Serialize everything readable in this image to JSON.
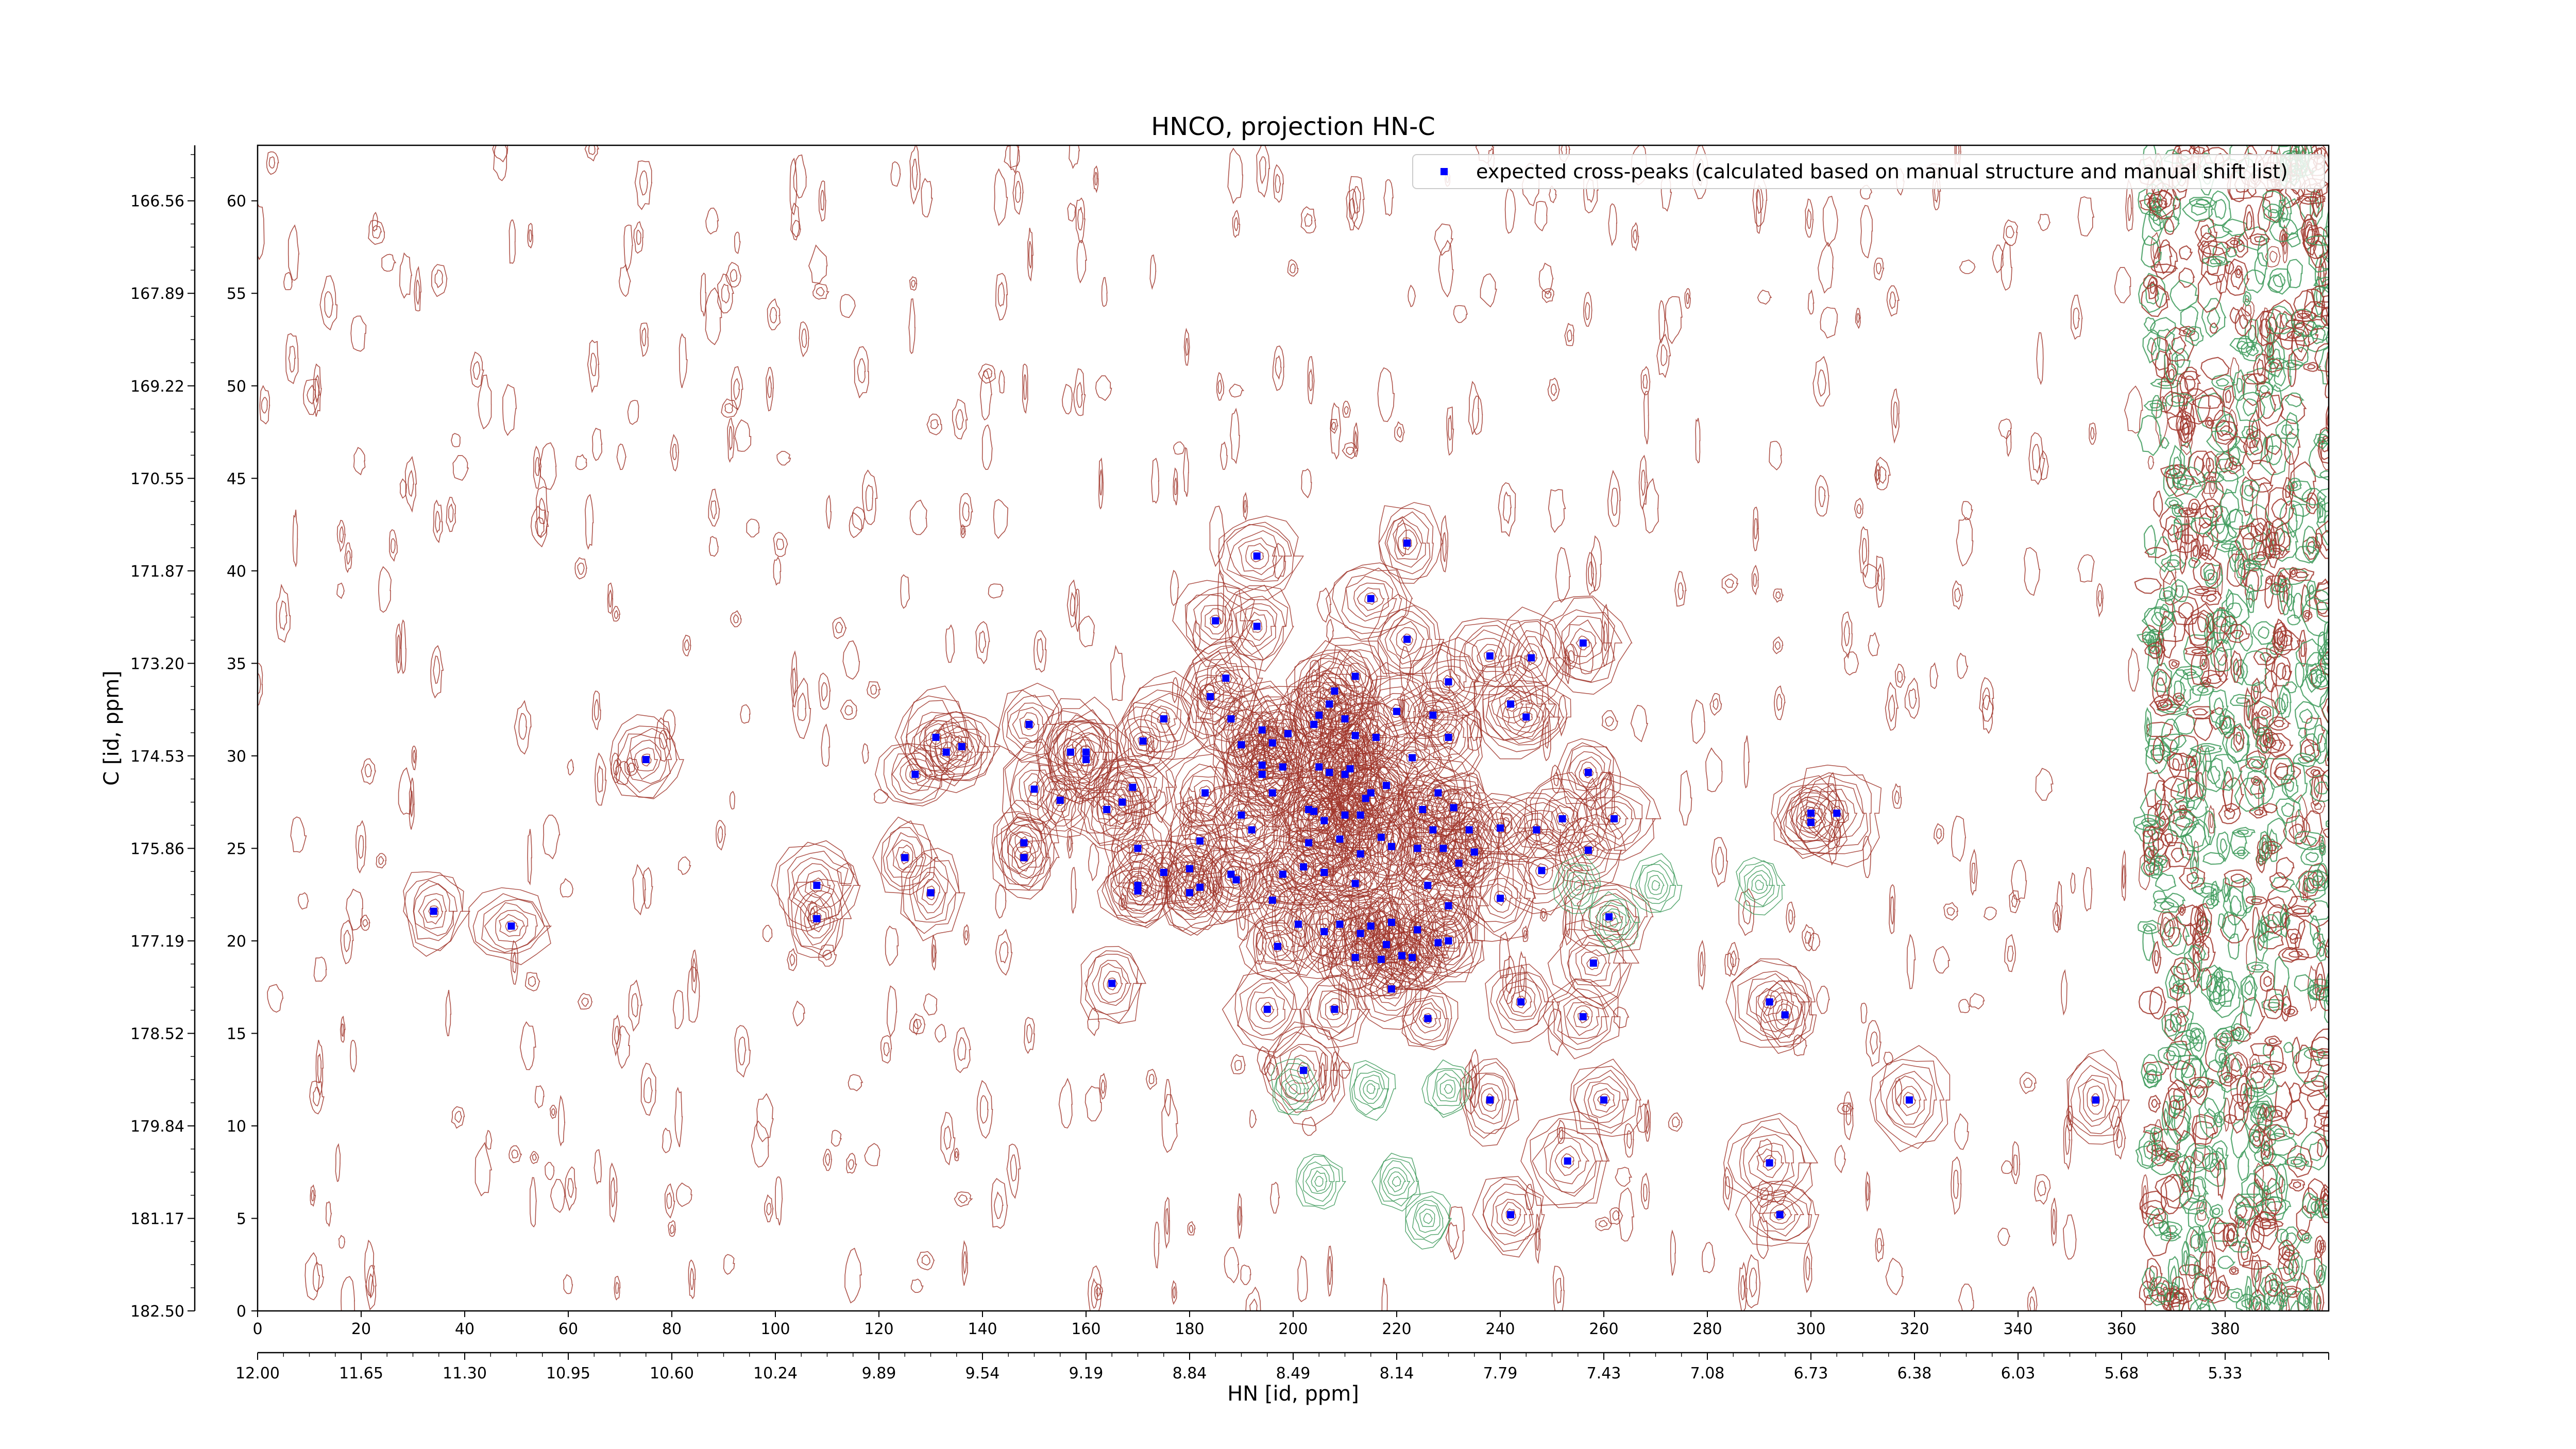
{
  "chart_data": {
    "type": "scatter",
    "title": "HNCO, projection HN-C",
    "xlabel": "HN [id, ppm]",
    "ylabel": "C [id, ppm]",
    "xlim": [
      0,
      400
    ],
    "ylim": [
      0,
      63
    ],
    "x_ticks": [
      0,
      20,
      40,
      60,
      80,
      100,
      120,
      140,
      160,
      180,
      200,
      220,
      240,
      260,
      280,
      300,
      320,
      340,
      360,
      380
    ],
    "y_ticks": [
      0,
      5,
      10,
      15,
      20,
      25,
      30,
      35,
      40,
      45,
      50,
      55,
      60
    ],
    "x_ppm_ticks": [
      {
        "x": 0,
        "label": "12.00"
      },
      {
        "x": 20,
        "label": "11.65"
      },
      {
        "x": 40,
        "label": "11.30"
      },
      {
        "x": 60,
        "label": "10.95"
      },
      {
        "x": 80,
        "label": "10.60"
      },
      {
        "x": 100,
        "label": "10.24"
      },
      {
        "x": 120,
        "label": "9.89"
      },
      {
        "x": 140,
        "label": "9.54"
      },
      {
        "x": 160,
        "label": "9.19"
      },
      {
        "x": 180,
        "label": "8.84"
      },
      {
        "x": 200,
        "label": "8.49"
      },
      {
        "x": 220,
        "label": "8.14"
      },
      {
        "x": 240,
        "label": "7.79"
      },
      {
        "x": 260,
        "label": "7.43"
      },
      {
        "x": 280,
        "label": "7.08"
      },
      {
        "x": 300,
        "label": "6.73"
      },
      {
        "x": 320,
        "label": "6.38"
      },
      {
        "x": 340,
        "label": "6.03"
      },
      {
        "x": 360,
        "label": "5.68"
      },
      {
        "x": 380,
        "label": "5.33"
      }
    ],
    "y_ppm_ticks": [
      {
        "y": 0,
        "label": "182.50"
      },
      {
        "y": 5,
        "label": "181.17"
      },
      {
        "y": 10,
        "label": "179.84"
      },
      {
        "y": 15,
        "label": "178.52"
      },
      {
        "y": 20,
        "label": "177.19"
      },
      {
        "y": 25,
        "label": "175.86"
      },
      {
        "y": 30,
        "label": "174.53"
      },
      {
        "y": 35,
        "label": "173.20"
      },
      {
        "y": 40,
        "label": "171.87"
      },
      {
        "y": 45,
        "label": "170.55"
      },
      {
        "y": 50,
        "label": "169.22"
      },
      {
        "y": 55,
        "label": "167.89"
      },
      {
        "y": 60,
        "label": "166.56"
      }
    ],
    "legend": {
      "placement": "top-right",
      "label": "expected cross-peaks (calculated based on manual structure and manual shift list)"
    },
    "colors": {
      "marker": "#0000ff",
      "positive_contour": "#a0352a",
      "negative_contour": "#3d9a5a"
    },
    "series": [
      {
        "name": "expected cross-peaks (calculated based on manual structure and manual shift list)",
        "points": [
          [
            34,
            21.6
          ],
          [
            49,
            20.8
          ],
          [
            75,
            29.8
          ],
          [
            108,
            21.2
          ],
          [
            108,
            23.0
          ],
          [
            125,
            24.5
          ],
          [
            127,
            29.0
          ],
          [
            130,
            22.6
          ],
          [
            131,
            31.0
          ],
          [
            133,
            30.2
          ],
          [
            136,
            30.5
          ],
          [
            148,
            25.3
          ],
          [
            148,
            24.5
          ],
          [
            149,
            31.7
          ],
          [
            150,
            28.2
          ],
          [
            155,
            27.6
          ],
          [
            157,
            30.2
          ],
          [
            160,
            30.2
          ],
          [
            160,
            29.8
          ],
          [
            164,
            27.1
          ],
          [
            165,
            17.7
          ],
          [
            167,
            27.5
          ],
          [
            169,
            28.3
          ],
          [
            170,
            22.7
          ],
          [
            170,
            23.0
          ],
          [
            170,
            25.0
          ],
          [
            171,
            30.8
          ],
          [
            175,
            23.7
          ],
          [
            175,
            32.0
          ],
          [
            180,
            23.9
          ],
          [
            180,
            22.6
          ],
          [
            182,
            22.9
          ],
          [
            182,
            25.4
          ],
          [
            183,
            28.0
          ],
          [
            184,
            33.2
          ],
          [
            185,
            37.3
          ],
          [
            187,
            34.2
          ],
          [
            188,
            23.6
          ],
          [
            188,
            32.0
          ],
          [
            189,
            23.3
          ],
          [
            190,
            26.8
          ],
          [
            190,
            30.6
          ],
          [
            192,
            26.0
          ],
          [
            193,
            37.0
          ],
          [
            193,
            40.8
          ],
          [
            194,
            31.4
          ],
          [
            194,
            29.5
          ],
          [
            194,
            29.0
          ],
          [
            195,
            16.3
          ],
          [
            196,
            22.2
          ],
          [
            196,
            30.7
          ],
          [
            196,
            28.0
          ],
          [
            197,
            19.7
          ],
          [
            198,
            23.6
          ],
          [
            198,
            29.4
          ],
          [
            199,
            31.2
          ],
          [
            201,
            20.9
          ],
          [
            202,
            13.0
          ],
          [
            202,
            24.0
          ],
          [
            203,
            25.3
          ],
          [
            203,
            27.1
          ],
          [
            204,
            27.0
          ],
          [
            204,
            31.7
          ],
          [
            205,
            29.4
          ],
          [
            205,
            32.2
          ],
          [
            206,
            20.5
          ],
          [
            206,
            23.7
          ],
          [
            206,
            26.5
          ],
          [
            207,
            29.1
          ],
          [
            207,
            32.8
          ],
          [
            208,
            16.3
          ],
          [
            208,
            33.5
          ],
          [
            209,
            20.9
          ],
          [
            209,
            25.5
          ],
          [
            210,
            26.8
          ],
          [
            210,
            29.0
          ],
          [
            210,
            32.0
          ],
          [
            211,
            29.3
          ],
          [
            212,
            19.1
          ],
          [
            212,
            23.1
          ],
          [
            212,
            31.1
          ],
          [
            212,
            34.3
          ],
          [
            213,
            20.4
          ],
          [
            213,
            24.7
          ],
          [
            213,
            26.8
          ],
          [
            214,
            27.7
          ],
          [
            215,
            20.8
          ],
          [
            215,
            28.0
          ],
          [
            215,
            38.5
          ],
          [
            216,
            31.0
          ],
          [
            217,
            19.0
          ],
          [
            217,
            25.6
          ],
          [
            218,
            28.4
          ],
          [
            218,
            19.8
          ],
          [
            219,
            17.4
          ],
          [
            219,
            21.0
          ],
          [
            219,
            25.1
          ],
          [
            220,
            32.4
          ],
          [
            221,
            19.2
          ],
          [
            222,
            41.5
          ],
          [
            222,
            36.3
          ],
          [
            223,
            29.9
          ],
          [
            223,
            19.1
          ],
          [
            224,
            20.6
          ],
          [
            224,
            25.0
          ],
          [
            225,
            27.1
          ],
          [
            226,
            15.8
          ],
          [
            226,
            23.0
          ],
          [
            227,
            32.2
          ],
          [
            227,
            26.0
          ],
          [
            228,
            28.0
          ],
          [
            228,
            19.9
          ],
          [
            229,
            25.0
          ],
          [
            230,
            20.0
          ],
          [
            230,
            21.9
          ],
          [
            230,
            31.0
          ],
          [
            230,
            34.0
          ],
          [
            231,
            27.2
          ],
          [
            232,
            24.2
          ],
          [
            234,
            26.0
          ],
          [
            235,
            24.8
          ],
          [
            238,
            35.4
          ],
          [
            238,
            11.4
          ],
          [
            240,
            22.3
          ],
          [
            240,
            26.1
          ],
          [
            242,
            5.2
          ],
          [
            242,
            32.8
          ],
          [
            244,
            16.7
          ],
          [
            245,
            32.1
          ],
          [
            246,
            35.3
          ],
          [
            247,
            26.0
          ],
          [
            248,
            23.8
          ],
          [
            252,
            26.6
          ],
          [
            253,
            8.1
          ],
          [
            256,
            36.1
          ],
          [
            256,
            15.9
          ],
          [
            257,
            29.1
          ],
          [
            257,
            24.9
          ],
          [
            258,
            18.8
          ],
          [
            260,
            11.4
          ],
          [
            261,
            21.3
          ],
          [
            262,
            26.6
          ],
          [
            292,
            8.0
          ],
          [
            292,
            16.7
          ],
          [
            294,
            5.2
          ],
          [
            295,
            16.0
          ],
          [
            300,
            26.9
          ],
          [
            300,
            26.4
          ],
          [
            305,
            26.9
          ],
          [
            319,
            11.4
          ],
          [
            355,
            11.4
          ]
        ]
      }
    ]
  }
}
